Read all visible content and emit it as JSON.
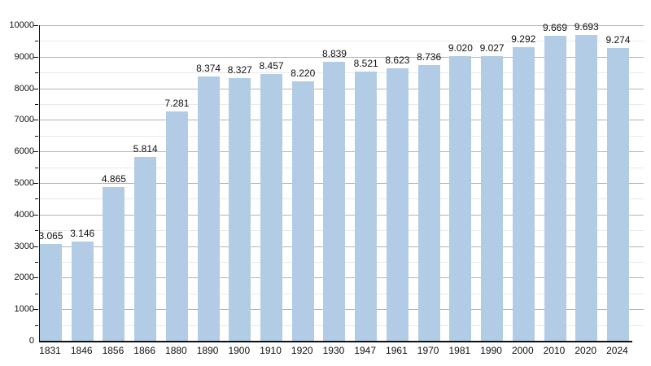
{
  "chart_data": {
    "type": "bar",
    "title": "",
    "xlabel": "",
    "ylabel": "",
    "categories": [
      "1831",
      "1846",
      "1856",
      "1866",
      "1880",
      "1890",
      "1900",
      "1910",
      "1920",
      "1930",
      "1947",
      "1961",
      "1970",
      "1981",
      "1990",
      "2000",
      "2010",
      "2020",
      "2024"
    ],
    "values": [
      3065,
      3146,
      4865,
      5814,
      7281,
      8374,
      8327,
      8457,
      8220,
      8839,
      8521,
      8623,
      8736,
      9020,
      9027,
      9292,
      9669,
      9693,
      9274
    ],
    "bar_labels": [
      "3.065",
      "3.146",
      "4.865",
      "5.814",
      "7.281",
      "8.374",
      "8.327",
      "8.457",
      "8.220",
      "8.839",
      "8.521",
      "8.623",
      "8.736",
      "9.020",
      "9.027",
      "9.292",
      "9.669",
      "9.693",
      "9.274"
    ],
    "ytick_labels": [
      "0",
      "1000",
      "2000",
      "3000",
      "4000",
      "5000",
      "6000",
      "7000",
      "8000",
      "9000",
      "10000"
    ],
    "ylim": [
      0,
      10000
    ],
    "ytick_major": 1000,
    "ytick_minor": 500,
    "grid": true,
    "legend_position": "none",
    "bar_color": "#b2cce5",
    "grid_major_color": "#b4b4b4",
    "grid_minor_color": "#e9e9e9",
    "axis_color": "#111111",
    "label_color": "#111111"
  }
}
